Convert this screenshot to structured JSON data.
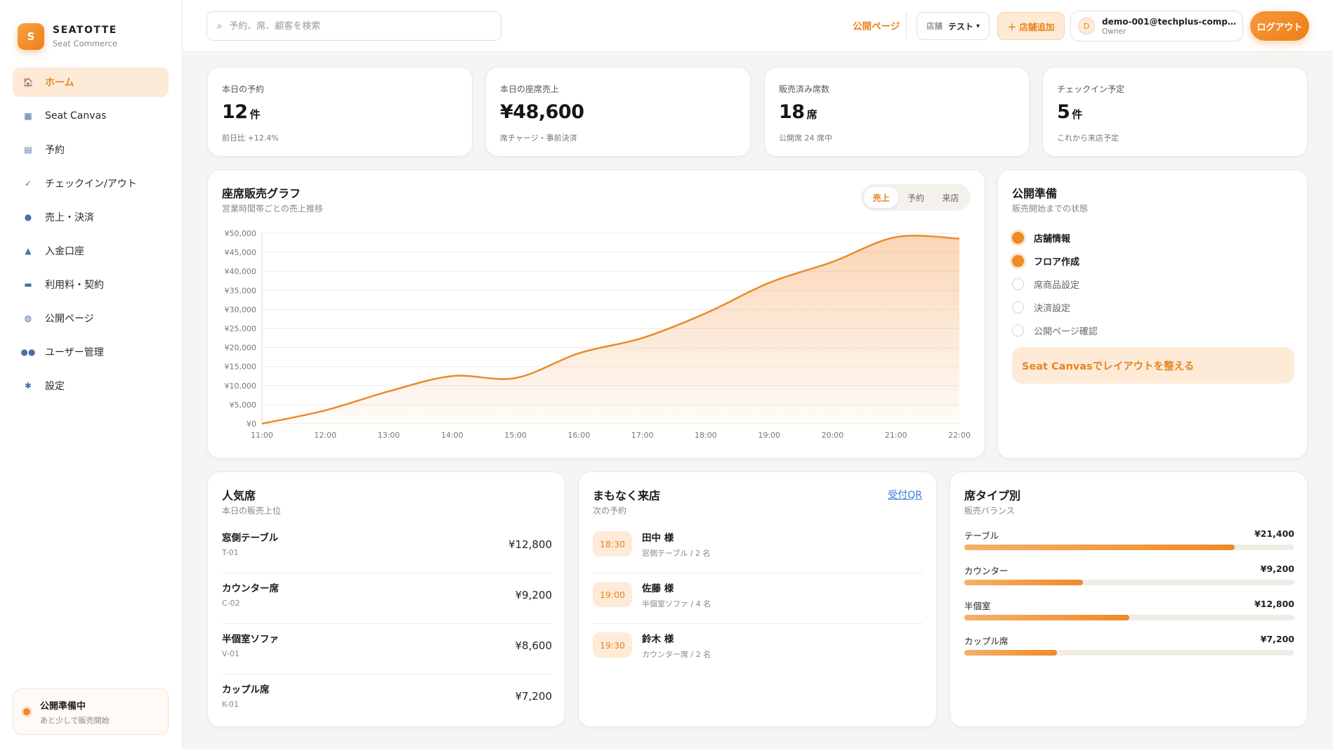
{
  "brand": {
    "logo_letter": "S",
    "name": "SEATOTTE",
    "sub": "Seat Commerce"
  },
  "sidebar": {
    "items": [
      {
        "label": "ホーム",
        "icon": "home-icon",
        "glyph": "🏠",
        "active": true
      },
      {
        "label": "Seat Canvas",
        "icon": "map-icon",
        "glyph": "▦",
        "active": false
      },
      {
        "label": "予約",
        "icon": "calendar-icon",
        "glyph": "▤",
        "active": false
      },
      {
        "label": "チェックイン/アウト",
        "icon": "check-icon",
        "glyph": "✓",
        "active": false
      },
      {
        "label": "売上・決済",
        "icon": "money-bag-icon",
        "glyph": "●",
        "active": false
      },
      {
        "label": "入金口座",
        "icon": "bank-icon",
        "glyph": "▲",
        "active": false
      },
      {
        "label": "利用料・契約",
        "icon": "credit-card-icon",
        "glyph": "▬",
        "active": false
      },
      {
        "label": "公開ページ",
        "icon": "globe-icon",
        "glyph": "◍",
        "active": false
      },
      {
        "label": "ユーザー管理",
        "icon": "users-icon",
        "glyph": "●●",
        "active": false
      },
      {
        "label": "設定",
        "icon": "gear-icon",
        "glyph": "✱",
        "active": false
      }
    ],
    "status": {
      "title": "公開準備中",
      "sub": "あと少しで販売開始"
    }
  },
  "topbar": {
    "search_placeholder": "予約、席、顧客を検索",
    "public_page": "公開ページ",
    "store_label": "店舗",
    "store_value": "テスト",
    "add_store": "＋ 店舗追加",
    "avatar_letter": "D",
    "user_email": "demo-001@techplus-compan...",
    "user_role": "Owner",
    "logout": "ログアウト"
  },
  "kpis": [
    {
      "label": "本日の予約",
      "value": "12",
      "unit": "件",
      "sub": "前日比 +12.4%"
    },
    {
      "label": "本日の座席売上",
      "value": "¥48,600",
      "unit": "",
      "sub": "席チャージ・事前決済"
    },
    {
      "label": "販売済み席数",
      "value": "18",
      "unit": "席",
      "sub": "公開席 24 席中"
    },
    {
      "label": "チェックイン予定",
      "value": "5",
      "unit": "件",
      "sub": "これから来店予定"
    }
  ],
  "sales_chart": {
    "title": "座席販売グラフ",
    "sub": "営業時間帯ごとの売上推移",
    "tabs": [
      {
        "label": "売上",
        "active": true
      },
      {
        "label": "予約",
        "active": false
      },
      {
        "label": "来店",
        "active": false
      }
    ]
  },
  "chart_data": {
    "type": "area",
    "x": [
      "11:00",
      "12:00",
      "13:00",
      "14:00",
      "15:00",
      "16:00",
      "17:00",
      "18:00",
      "19:00",
      "20:00",
      "21:00",
      "22:00"
    ],
    "values": [
      0,
      3500,
      8500,
      12500,
      12000,
      18500,
      22500,
      29000,
      37000,
      42500,
      49000,
      48600
    ],
    "ylim": [
      0,
      50000
    ],
    "yticks": [
      0,
      5000,
      10000,
      15000,
      20000,
      25000,
      30000,
      35000,
      40000,
      45000,
      50000
    ],
    "ytick_labels": [
      "¥0",
      "¥5,000",
      "¥10,000",
      "¥15,000",
      "¥20,000",
      "¥25,000",
      "¥30,000",
      "¥35,000",
      "¥40,000",
      "¥45,000",
      "¥50,000"
    ],
    "grid": true,
    "color": "#ea8a2c"
  },
  "readiness": {
    "title": "公開準備",
    "sub": "販売開始までの状態",
    "items": [
      {
        "label": "店舗情報",
        "done": true
      },
      {
        "label": "フロア作成",
        "done": true
      },
      {
        "label": "席商品設定",
        "done": false
      },
      {
        "label": "決済設定",
        "done": false
      },
      {
        "label": "公開ページ確認",
        "done": false
      }
    ],
    "button": "Seat Canvasでレイアウトを整える"
  },
  "popular": {
    "title": "人気席",
    "sub": "本日の販売上位",
    "items": [
      {
        "name": "窓側テーブル",
        "code": "T-01",
        "price": "¥12,800"
      },
      {
        "name": "カウンター席",
        "code": "C-02",
        "price": "¥9,200"
      },
      {
        "name": "半個室ソファ",
        "code": "V-01",
        "price": "¥8,600"
      },
      {
        "name": "カップル席",
        "code": "K-01",
        "price": "¥7,200"
      }
    ]
  },
  "arrivals": {
    "title": "まもなく来店",
    "sub": "次の予約",
    "link": "受付QR",
    "items": [
      {
        "time": "18:30",
        "name": "田中 様",
        "detail": "窓側テーブル / 2 名"
      },
      {
        "time": "19:00",
        "name": "佐藤 様",
        "detail": "半個室ソファ / 4 名"
      },
      {
        "time": "19:30",
        "name": "鈴木 様",
        "detail": "カウンター席 / 2 名"
      }
    ]
  },
  "seat_types": {
    "title": "席タイプ別",
    "sub": "販売バランス",
    "items": [
      {
        "label": "テーブル",
        "value": "¥21,400",
        "ratio": 0.82
      },
      {
        "label": "カウンター",
        "value": "¥9,200",
        "ratio": 0.36
      },
      {
        "label": "半個室",
        "value": "¥12,800",
        "ratio": 0.5
      },
      {
        "label": "カップル席",
        "value": "¥7,200",
        "ratio": 0.28
      }
    ]
  },
  "colors": {
    "accent": "#ee8a25",
    "accent_light": "#fdebd8",
    "link": "#3a79d4"
  }
}
